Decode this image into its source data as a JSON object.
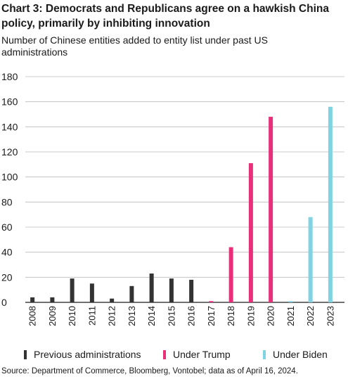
{
  "chart_data": {
    "type": "bar",
    "title": "Chart 3: Democrats and Republicans agree on a hawkish China policy, primarily by inhibiting innovation",
    "subtitle": "Number of Chinese entities added to entity list under past US administrations",
    "categories": [
      "2008",
      "2009",
      "2010",
      "2011",
      "2012",
      "2013",
      "2014",
      "2015",
      "2016",
      "2017",
      "2018",
      "2019",
      "2020",
      "2021",
      "2022",
      "2023"
    ],
    "values": [
      4,
      4,
      19,
      15,
      3,
      13,
      23,
      19,
      18,
      1,
      44,
      111,
      148,
      1,
      68,
      156
    ],
    "group_of_bar": [
      "prev",
      "prev",
      "prev",
      "prev",
      "prev",
      "prev",
      "prev",
      "prev",
      "prev",
      "trump",
      "trump",
      "trump",
      "trump",
      "biden",
      "biden",
      "biden"
    ],
    "series": [
      {
        "key": "prev",
        "name": "Previous administrations",
        "color": "#333333"
      },
      {
        "key": "trump",
        "name": "Under Trump",
        "color": "#e8307a"
      },
      {
        "key": "biden",
        "name": "Under Biden",
        "color": "#7fd3e3"
      }
    ],
    "yticks": [
      0,
      20,
      40,
      60,
      80,
      100,
      120,
      140,
      160,
      180
    ],
    "ylim": [
      0,
      180
    ],
    "grid": true,
    "legend_position": "bottom"
  },
  "source": "Source: Department of Commerce, Bloomberg, Vontobel; data as of April 16, 2024."
}
